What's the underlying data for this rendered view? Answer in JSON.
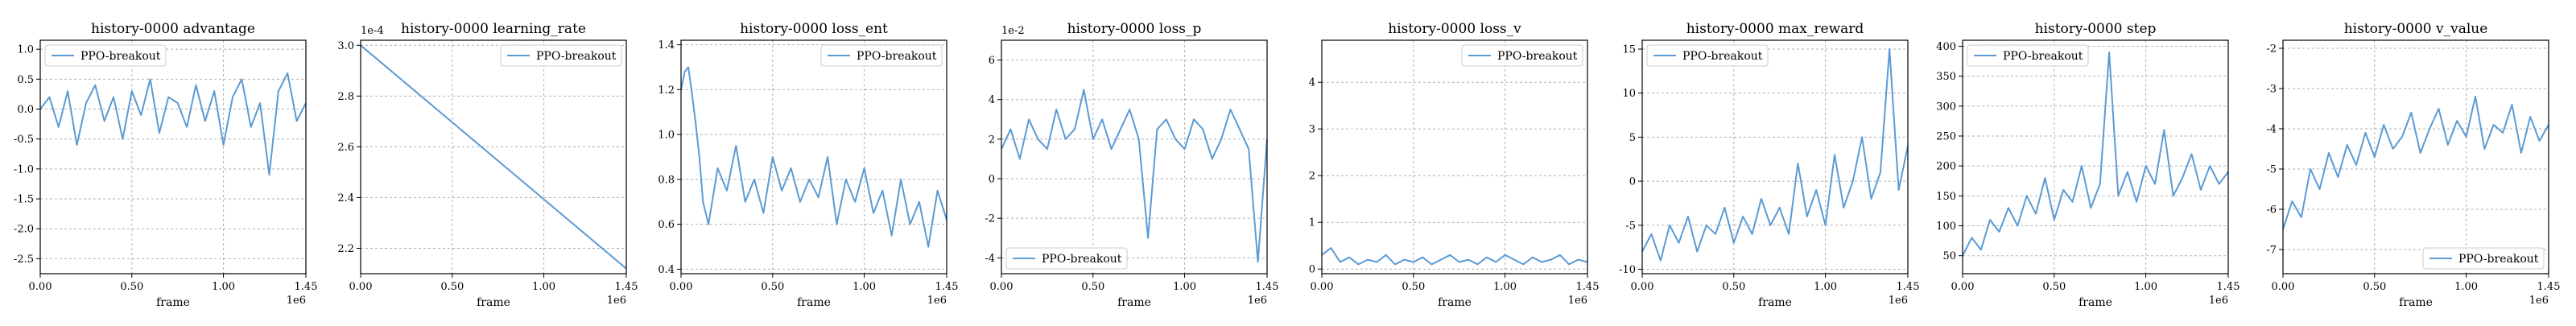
{
  "style": {
    "line_color": "#5a9bd4",
    "grid_color": "#b0b0b0",
    "legend_border": "#cccccc"
  },
  "chart_data": [
    {
      "type": "line",
      "title": "history-0000 advantage",
      "xlabel": "frame",
      "ylabel": "",
      "x_ticks": [
        "0.00",
        "0.50",
        "1.00",
        "1.45"
      ],
      "x_tick_values": [
        0,
        0.5,
        1.0,
        1.45
      ],
      "x_scale_label": "1e6",
      "xlim": [
        0,
        1.45
      ],
      "y_scale_label": "",
      "y_ticks": [
        "1.0",
        "0.5",
        "0.0",
        "-0.5",
        "-1.0",
        "-1.5",
        "-2.0",
        "-2.5"
      ],
      "y_tick_values": [
        1.0,
        0.5,
        0.0,
        -0.5,
        -1.0,
        -1.5,
        -2.0,
        -2.5
      ],
      "ylim": [
        -2.75,
        1.15
      ],
      "grid": true,
      "legend": "top-left",
      "series": [
        {
          "name": "PPO-breakout",
          "x": [
            0,
            0.05,
            0.1,
            0.15,
            0.2,
            0.25,
            0.3,
            0.35,
            0.4,
            0.45,
            0.5,
            0.55,
            0.6,
            0.65,
            0.7,
            0.75,
            0.8,
            0.85,
            0.9,
            0.95,
            1.0,
            1.05,
            1.1,
            1.15,
            1.2,
            1.25,
            1.3,
            1.35,
            1.4,
            1.45
          ],
          "y": [
            0.0,
            0.2,
            -0.3,
            0.3,
            -0.6,
            0.1,
            0.4,
            -0.2,
            0.2,
            -0.5,
            0.3,
            -0.1,
            0.5,
            -0.4,
            0.2,
            0.1,
            -0.3,
            0.4,
            -0.2,
            0.3,
            -0.6,
            0.2,
            0.5,
            -0.3,
            0.1,
            -1.1,
            0.3,
            0.6,
            -0.2,
            0.1
          ]
        }
      ]
    },
    {
      "type": "line",
      "title": "history-0000 learning_rate",
      "xlabel": "frame",
      "ylabel": "",
      "x_ticks": [
        "0.00",
        "0.50",
        "1.00",
        "1.45"
      ],
      "x_tick_values": [
        0,
        0.5,
        1.0,
        1.45
      ],
      "x_scale_label": "1e6",
      "xlim": [
        0,
        1.45
      ],
      "y_scale_label": "1e-4",
      "y_ticks": [
        "3.0",
        "2.8",
        "2.6",
        "2.4",
        "2.2"
      ],
      "y_tick_values": [
        3.0,
        2.8,
        2.6,
        2.4,
        2.2
      ],
      "ylim": [
        2.1,
        3.02
      ],
      "grid": true,
      "legend": "top-right",
      "series": [
        {
          "name": "PPO-breakout",
          "x": [
            0,
            1.45
          ],
          "y": [
            3.0,
            2.12
          ]
        }
      ]
    },
    {
      "type": "line",
      "title": "history-0000 loss_ent",
      "xlabel": "frame",
      "ylabel": "",
      "x_ticks": [
        "0.00",
        "0.50",
        "1.00",
        "1.45"
      ],
      "x_tick_values": [
        0,
        0.5,
        1.0,
        1.45
      ],
      "x_scale_label": "1e6",
      "xlim": [
        0,
        1.45
      ],
      "y_scale_label": "",
      "y_ticks": [
        "1.4",
        "1.2",
        "1.0",
        "0.8",
        "0.6",
        "0.4"
      ],
      "y_tick_values": [
        1.4,
        1.2,
        1.0,
        0.8,
        0.6,
        0.4
      ],
      "ylim": [
        0.38,
        1.42
      ],
      "grid": true,
      "legend": "top-right",
      "series": [
        {
          "name": "PPO-breakout",
          "x": [
            0,
            0.02,
            0.04,
            0.06,
            0.08,
            0.1,
            0.12,
            0.15,
            0.2,
            0.25,
            0.3,
            0.35,
            0.4,
            0.45,
            0.5,
            0.55,
            0.6,
            0.65,
            0.7,
            0.75,
            0.8,
            0.85,
            0.9,
            0.95,
            1.0,
            1.05,
            1.1,
            1.15,
            1.2,
            1.25,
            1.3,
            1.35,
            1.4,
            1.45
          ],
          "y": [
            1.2,
            1.28,
            1.3,
            1.18,
            1.05,
            0.9,
            0.7,
            0.6,
            0.85,
            0.75,
            0.95,
            0.7,
            0.8,
            0.65,
            0.9,
            0.75,
            0.85,
            0.7,
            0.8,
            0.72,
            0.9,
            0.6,
            0.8,
            0.7,
            0.85,
            0.65,
            0.75,
            0.55,
            0.8,
            0.6,
            0.7,
            0.5,
            0.75,
            0.62
          ]
        }
      ]
    },
    {
      "type": "line",
      "title": "history-0000 loss_p",
      "xlabel": "frame",
      "ylabel": "",
      "x_ticks": [
        "0.00",
        "0.50",
        "1.00",
        "1.45"
      ],
      "x_tick_values": [
        0,
        0.5,
        1.0,
        1.45
      ],
      "x_scale_label": "1e6",
      "xlim": [
        0,
        1.45
      ],
      "y_scale_label": "1e-2",
      "y_ticks": [
        "6",
        "4",
        "2",
        "0",
        "-2",
        "-4"
      ],
      "y_tick_values": [
        6,
        4,
        2,
        0,
        -2,
        -4
      ],
      "ylim": [
        -4.8,
        7.0
      ],
      "grid": true,
      "legend": "bottom-left",
      "series": [
        {
          "name": "PPO-breakout",
          "x": [
            0,
            0.05,
            0.1,
            0.15,
            0.2,
            0.25,
            0.3,
            0.35,
            0.4,
            0.45,
            0.5,
            0.55,
            0.6,
            0.65,
            0.7,
            0.75,
            0.8,
            0.85,
            0.9,
            0.95,
            1.0,
            1.05,
            1.1,
            1.15,
            1.2,
            1.25,
            1.3,
            1.35,
            1.4,
            1.45
          ],
          "y": [
            1.5,
            2.5,
            1.0,
            3.0,
            2.0,
            1.5,
            3.5,
            2.0,
            2.5,
            4.5,
            2.0,
            3.0,
            1.5,
            2.5,
            3.5,
            2.0,
            -3.0,
            2.5,
            3.0,
            2.0,
            1.5,
            3.0,
            2.5,
            1.0,
            2.0,
            3.5,
            2.5,
            1.5,
            -4.2,
            2.0
          ]
        }
      ]
    },
    {
      "type": "line",
      "title": "history-0000 loss_v",
      "xlabel": "frame",
      "ylabel": "",
      "x_ticks": [
        "0.00",
        "0.50",
        "1.00",
        "1.45"
      ],
      "x_tick_values": [
        0,
        0.5,
        1.0,
        1.45
      ],
      "x_scale_label": "1e6",
      "xlim": [
        0,
        1.45
      ],
      "y_scale_label": "",
      "y_ticks": [
        "4",
        "3",
        "2",
        "1",
        "0"
      ],
      "y_tick_values": [
        4,
        3,
        2,
        1,
        0
      ],
      "ylim": [
        -0.1,
        4.9
      ],
      "grid": true,
      "legend": "top-right",
      "series": [
        {
          "name": "PPO-breakout",
          "x": [
            0,
            0.05,
            0.1,
            0.15,
            0.2,
            0.25,
            0.3,
            0.35,
            0.4,
            0.45,
            0.5,
            0.55,
            0.6,
            0.65,
            0.7,
            0.75,
            0.8,
            0.85,
            0.9,
            0.95,
            1.0,
            1.05,
            1.1,
            1.15,
            1.2,
            1.25,
            1.3,
            1.35,
            1.4,
            1.45
          ],
          "y": [
            0.3,
            0.45,
            0.15,
            0.25,
            0.1,
            0.2,
            0.15,
            0.3,
            0.1,
            0.2,
            0.15,
            0.25,
            0.1,
            0.2,
            0.3,
            0.15,
            0.2,
            0.1,
            0.25,
            0.15,
            0.3,
            0.2,
            0.1,
            0.25,
            0.15,
            0.2,
            0.3,
            0.1,
            0.2,
            0.15
          ]
        }
      ]
    },
    {
      "type": "line",
      "title": "history-0000 max_reward",
      "xlabel": "frame",
      "ylabel": "",
      "x_ticks": [
        "0.00",
        "0.50",
        "1.00",
        "1.45"
      ],
      "x_tick_values": [
        0,
        0.5,
        1.0,
        1.45
      ],
      "x_scale_label": "1e6",
      "xlim": [
        0,
        1.45
      ],
      "y_scale_label": "",
      "y_ticks": [
        "15",
        "10",
        "5",
        "0",
        "-5",
        "-10"
      ],
      "y_tick_values": [
        15,
        10,
        5,
        0,
        -5,
        -10
      ],
      "ylim": [
        -10.5,
        16.0
      ],
      "grid": true,
      "legend": "top-left",
      "series": [
        {
          "name": "PPO-breakout",
          "x": [
            0,
            0.05,
            0.1,
            0.15,
            0.2,
            0.25,
            0.3,
            0.35,
            0.4,
            0.45,
            0.5,
            0.55,
            0.6,
            0.65,
            0.7,
            0.75,
            0.8,
            0.85,
            0.9,
            0.95,
            1.0,
            1.05,
            1.1,
            1.15,
            1.2,
            1.25,
            1.3,
            1.35,
            1.4,
            1.45
          ],
          "y": [
            -8,
            -6,
            -9,
            -5,
            -7,
            -4,
            -8,
            -5,
            -6,
            -3,
            -7,
            -4,
            -6,
            -2,
            -5,
            -3,
            -6,
            2,
            -4,
            -1,
            -5,
            3,
            -3,
            0,
            5,
            -2,
            1,
            15,
            -1,
            4
          ]
        }
      ]
    },
    {
      "type": "line",
      "title": "history-0000 step",
      "xlabel": "frame",
      "ylabel": "",
      "x_ticks": [
        "0.00",
        "0.50",
        "1.00",
        "1.45"
      ],
      "x_tick_values": [
        0,
        0.5,
        1.0,
        1.45
      ],
      "x_scale_label": "1e6",
      "xlim": [
        0,
        1.45
      ],
      "y_scale_label": "",
      "y_ticks": [
        "400",
        "350",
        "300",
        "250",
        "200",
        "150",
        "100",
        "50"
      ],
      "y_tick_values": [
        400,
        350,
        300,
        250,
        200,
        150,
        100,
        50
      ],
      "ylim": [
        20,
        410
      ],
      "grid": true,
      "legend": "top-left",
      "series": [
        {
          "name": "PPO-breakout",
          "x": [
            0,
            0.05,
            0.1,
            0.15,
            0.2,
            0.25,
            0.3,
            0.35,
            0.4,
            0.45,
            0.5,
            0.55,
            0.6,
            0.65,
            0.7,
            0.75,
            0.8,
            0.85,
            0.9,
            0.95,
            1.0,
            1.05,
            1.1,
            1.15,
            1.2,
            1.25,
            1.3,
            1.35,
            1.4,
            1.45
          ],
          "y": [
            50,
            80,
            60,
            110,
            90,
            130,
            100,
            150,
            120,
            180,
            110,
            160,
            140,
            200,
            130,
            170,
            390,
            150,
            190,
            140,
            200,
            170,
            260,
            150,
            180,
            220,
            160,
            200,
            170,
            190
          ]
        }
      ]
    },
    {
      "type": "line",
      "title": "history-0000 v_value",
      "xlabel": "frame",
      "ylabel": "",
      "x_ticks": [
        "0.00",
        "0.50",
        "1.00",
        "1.45"
      ],
      "x_tick_values": [
        0,
        0.5,
        1.0,
        1.45
      ],
      "x_scale_label": "1e6",
      "xlim": [
        0,
        1.45
      ],
      "y_scale_label": "",
      "y_ticks": [
        "-2",
        "-3",
        "-4",
        "-5",
        "-6",
        "-7"
      ],
      "y_tick_values": [
        -2,
        -3,
        -4,
        -5,
        -6,
        -7
      ],
      "ylim": [
        -7.6,
        -1.8
      ],
      "grid": true,
      "legend": "bottom-right",
      "series": [
        {
          "name": "PPO-breakout",
          "x": [
            0,
            0.05,
            0.1,
            0.15,
            0.2,
            0.25,
            0.3,
            0.35,
            0.4,
            0.45,
            0.5,
            0.55,
            0.6,
            0.65,
            0.7,
            0.75,
            0.8,
            0.85,
            0.9,
            0.95,
            1.0,
            1.05,
            1.1,
            1.15,
            1.2,
            1.25,
            1.3,
            1.35,
            1.4,
            1.45
          ],
          "y": [
            -6.5,
            -5.8,
            -6.2,
            -5.0,
            -5.5,
            -4.6,
            -5.2,
            -4.4,
            -4.9,
            -4.1,
            -4.7,
            -3.9,
            -4.5,
            -4.2,
            -3.6,
            -4.6,
            -4.0,
            -3.5,
            -4.4,
            -3.8,
            -4.2,
            -3.2,
            -4.5,
            -3.9,
            -4.1,
            -3.4,
            -4.6,
            -3.7,
            -4.3,
            -3.9
          ]
        }
      ]
    }
  ]
}
